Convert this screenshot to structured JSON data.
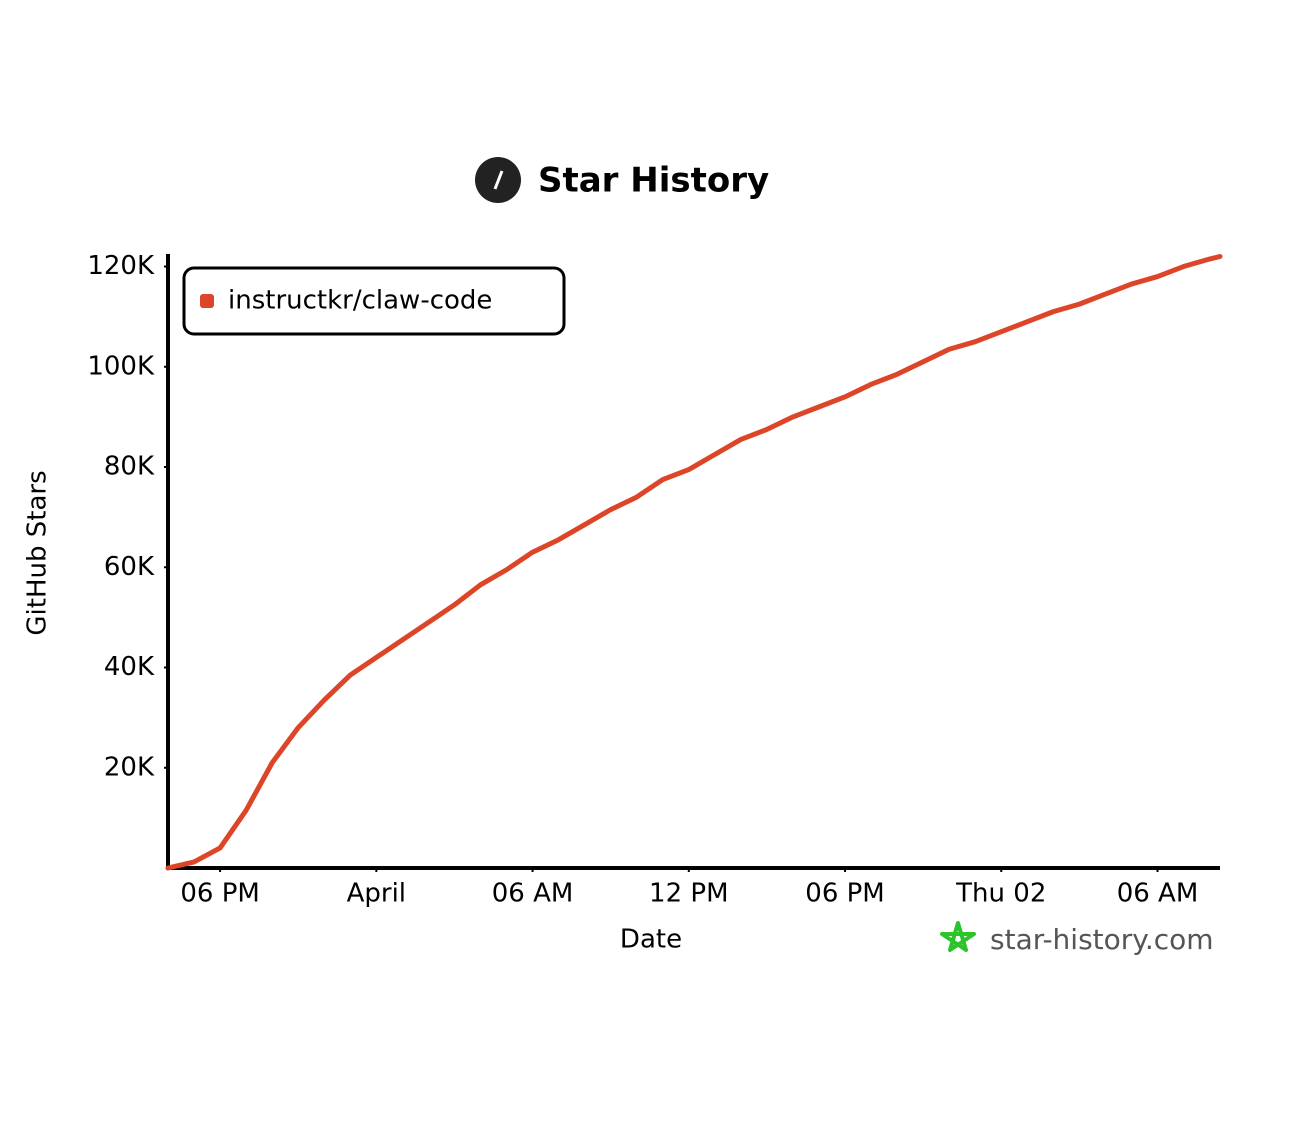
{
  "chart_data": {
    "type": "line",
    "title": "Star History",
    "x_label": "Date",
    "y_label": "GitHub Stars",
    "watermark": "star-history.com",
    "x": [
      16,
      17,
      18,
      19,
      20,
      21,
      22,
      23,
      24,
      25,
      26,
      27,
      28,
      29,
      30,
      31,
      32,
      33,
      34,
      35,
      36,
      37,
      38,
      39,
      40,
      41,
      42,
      43,
      44,
      45,
      46,
      47,
      48,
      49,
      50,
      51,
      52,
      53,
      54,
      55,
      56,
      56.4
    ],
    "series": [
      {
        "name": "instructkr/claw-code",
        "color": "#dd4528",
        "values": [
          0,
          1200,
          4000,
          11500,
          21000,
          28000,
          33500,
          38500,
          42000,
          45500,
          49000,
          52500,
          56500,
          59500,
          63000,
          65500,
          68500,
          71500,
          74000,
          77500,
          79500,
          82500,
          85500,
          87500,
          90000,
          92000,
          94000,
          96500,
          98500,
          101000,
          103500,
          105000,
          107000,
          109000,
          111000,
          112500,
          114500,
          116500,
          118000,
          120000,
          121500,
          122000
        ]
      }
    ],
    "xlim": [
      16,
      56.4
    ],
    "xticks": [
      {
        "value": 18,
        "label": "06 PM"
      },
      {
        "value": 24,
        "label": "April"
      },
      {
        "value": 30,
        "label": "06 AM"
      },
      {
        "value": 36,
        "label": "12 PM"
      },
      {
        "value": 42,
        "label": "06 PM"
      },
      {
        "value": 48,
        "label": "Thu 02"
      },
      {
        "value": 54,
        "label": "06 AM"
      }
    ],
    "ylim": [
      0,
      122500
    ],
    "yticks": [
      {
        "value": 20000,
        "label": "20K"
      },
      {
        "value": 40000,
        "label": "40K"
      },
      {
        "value": 60000,
        "label": "60K"
      },
      {
        "value": 80000,
        "label": "80K"
      },
      {
        "value": 100000,
        "label": "100K"
      },
      {
        "value": 120000,
        "label": "120K"
      }
    ],
    "legend": "upper left"
  }
}
